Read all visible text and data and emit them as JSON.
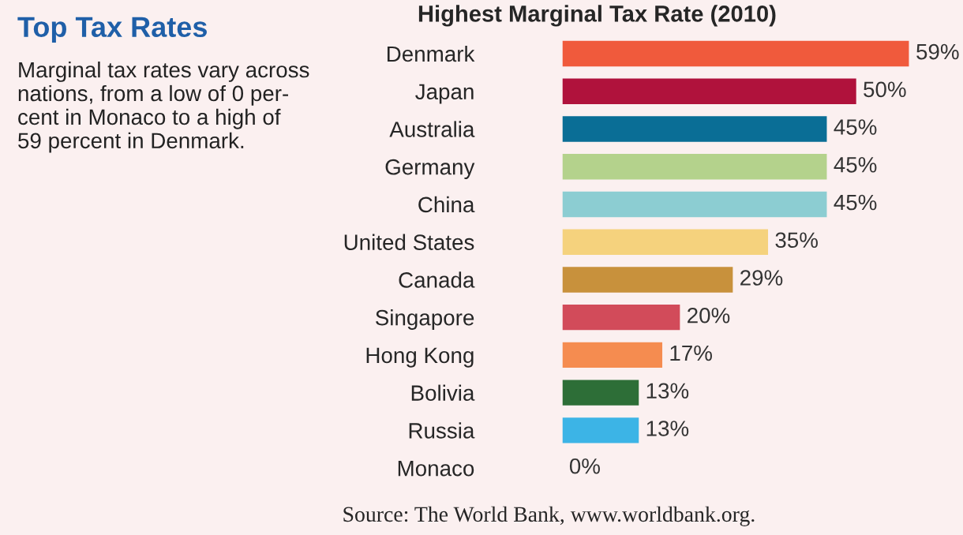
{
  "chart_data": {
    "type": "bar",
    "orientation": "horizontal",
    "title": "Highest Marginal Tax Rate (2010)",
    "categories": [
      "Denmark",
      "Japan",
      "Australia",
      "Germany",
      "China",
      "United States",
      "Canada",
      "Singapore",
      "Hong Kong",
      "Bolivia",
      "Russia",
      "Monaco"
    ],
    "values": [
      59,
      50,
      45,
      45,
      45,
      35,
      29,
      20,
      17,
      13,
      13,
      0
    ],
    "value_labels": [
      "59%",
      "50%",
      "45%",
      "45%",
      "45%",
      "35%",
      "29%",
      "20%",
      "17%",
      "13%",
      "13%",
      "0%"
    ],
    "colors": [
      "#f05a3c",
      "#b0123c",
      "#0a6e96",
      "#b4d28c",
      "#8ccdd2",
      "#f5d27d",
      "#c8913c",
      "#d24b5a",
      "#f58c50",
      "#2d6e37",
      "#3cb4e6",
      "#cccccc"
    ],
    "grid": false,
    "annotations": [
      "Top Tax Rates",
      "Marginal tax rates vary across\nnations, from a low of 0 per-\ncent in Monaco to a high of\n59 percent in Denmark.",
      "Source: The World Bank, www.worldbank.org."
    ]
  }
}
